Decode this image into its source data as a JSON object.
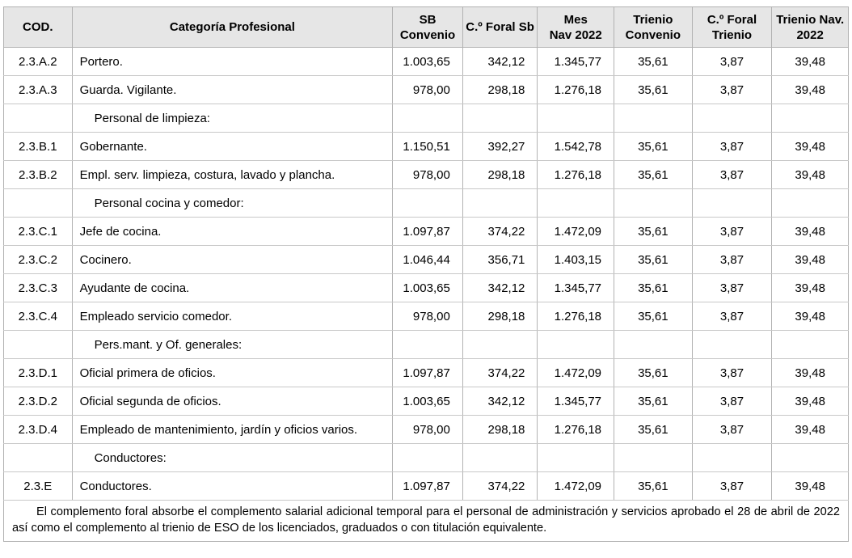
{
  "colors": {
    "header_bg": "#e6e6e6",
    "border": "#b2b2b2",
    "row_border": "#c8c8c8",
    "text": "#000000",
    "page_bg": "#ffffff"
  },
  "table": {
    "columns": [
      {
        "id": "cod",
        "label": "COD."
      },
      {
        "id": "categoria",
        "label": "Categoría Profesional"
      },
      {
        "id": "sb-convenio",
        "label": "SB\nConvenio"
      },
      {
        "id": "foral-sb",
        "label": "C.º Foral Sb"
      },
      {
        "id": "mes-nav-2022",
        "label": "Mes\nNav 2022"
      },
      {
        "id": "trienio-convenio",
        "label": "Trienio\nConvenio"
      },
      {
        "id": "foral-trienio",
        "label": "C.º Foral\nTrienio"
      },
      {
        "id": "trienio-nav-2022",
        "label": "Trienio Nav.\n2022"
      }
    ],
    "rows": [
      {
        "type": "data",
        "cod": "2.3.A.2",
        "categoria": "Portero.",
        "values": [
          "1.003,65",
          "342,12",
          "1.345,77",
          "35,61",
          "3,87",
          "39,48"
        ]
      },
      {
        "type": "data",
        "cod": "2.3.A.3",
        "categoria": "Guarda. Vigilante.",
        "values": [
          "978,00",
          "298,18",
          "1.276,18",
          "35,61",
          "3,87",
          "39,48"
        ]
      },
      {
        "type": "section",
        "cod": "",
        "categoria": "Personal de limpieza:",
        "values": [
          "",
          "",
          "",
          "",
          "",
          ""
        ]
      },
      {
        "type": "data",
        "cod": "2.3.B.1",
        "categoria": "Gobernante.",
        "values": [
          "1.150,51",
          "392,27",
          "1.542,78",
          "35,61",
          "3,87",
          "39,48"
        ]
      },
      {
        "type": "data",
        "cod": "2.3.B.2",
        "categoria": "Empl. serv. limpieza, costura, lavado y plancha.",
        "values": [
          "978,00",
          "298,18",
          "1.276,18",
          "35,61",
          "3,87",
          "39,48"
        ]
      },
      {
        "type": "section",
        "cod": "",
        "categoria": "Personal cocina y comedor:",
        "values": [
          "",
          "",
          "",
          "",
          "",
          ""
        ]
      },
      {
        "type": "data",
        "cod": "2.3.C.1",
        "categoria": "Jefe de cocina.",
        "values": [
          "1.097,87",
          "374,22",
          "1.472,09",
          "35,61",
          "3,87",
          "39,48"
        ]
      },
      {
        "type": "data",
        "cod": "2.3.C.2",
        "categoria": "Cocinero.",
        "values": [
          "1.046,44",
          "356,71",
          "1.403,15",
          "35,61",
          "3,87",
          "39,48"
        ]
      },
      {
        "type": "data",
        "cod": "2.3.C.3",
        "categoria": "Ayudante de cocina.",
        "values": [
          "1.003,65",
          "342,12",
          "1.345,77",
          "35,61",
          "3,87",
          "39,48"
        ]
      },
      {
        "type": "data",
        "cod": "2.3.C.4",
        "categoria": "Empleado servicio comedor.",
        "values": [
          "978,00",
          "298,18",
          "1.276,18",
          "35,61",
          "3,87",
          "39,48"
        ]
      },
      {
        "type": "section",
        "cod": "",
        "categoria": "Pers.mant. y Of. generales:",
        "values": [
          "",
          "",
          "",
          "",
          "",
          ""
        ]
      },
      {
        "type": "data",
        "cod": "2.3.D.1",
        "categoria": "Oficial primera de oficios.",
        "values": [
          "1.097,87",
          "374,22",
          "1.472,09",
          "35,61",
          "3,87",
          "39,48"
        ]
      },
      {
        "type": "data",
        "cod": "2.3.D.2",
        "categoria": "Oficial segunda de oficios.",
        "values": [
          "1.003,65",
          "342,12",
          "1.345,77",
          "35,61",
          "3,87",
          "39,48"
        ]
      },
      {
        "type": "data",
        "cod": "2.3.D.4",
        "categoria": "Empleado de mantenimiento, jardín y oficios varios.",
        "values": [
          "978,00",
          "298,18",
          "1.276,18",
          "35,61",
          "3,87",
          "39,48"
        ]
      },
      {
        "type": "section",
        "cod": "",
        "categoria": "Conductores:",
        "values": [
          "",
          "",
          "",
          "",
          "",
          ""
        ]
      },
      {
        "type": "data",
        "cod": "2.3.E",
        "categoria": "Conductores.",
        "values": [
          "1.097,87",
          "374,22",
          "1.472,09",
          "35,61",
          "3,87",
          "39,48"
        ]
      }
    ],
    "footnote": "El complemento foral absorbe el complemento salarial adicional temporal para el personal de administración y servicios aprobado el 28 de abril de 2022 así como el complemento al trienio de ESO de los licenciados, graduados o con titulación equivalente."
  }
}
